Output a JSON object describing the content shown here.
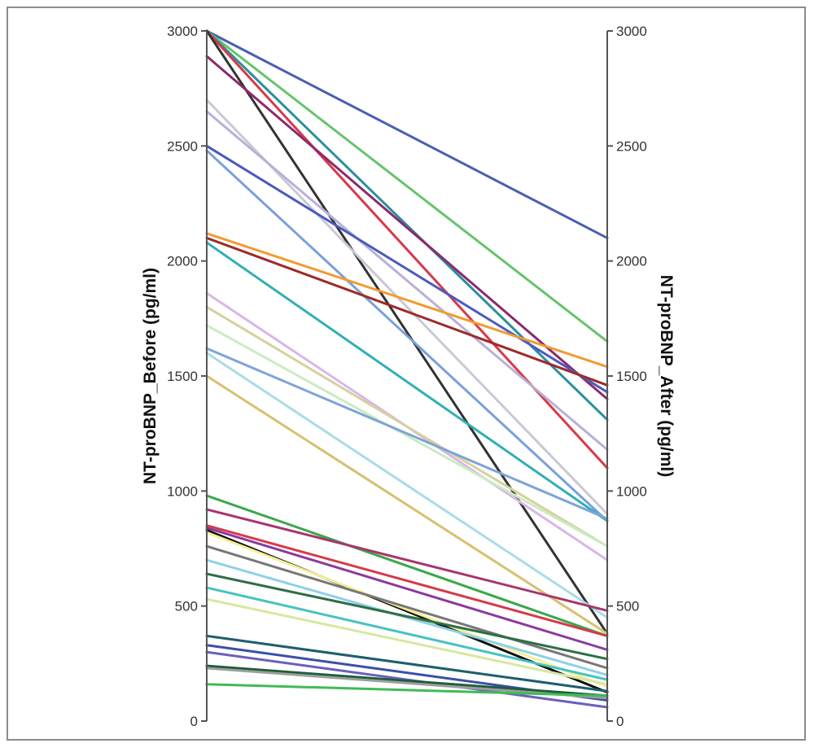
{
  "chart_data": {
    "type": "line",
    "subtype": "parallel-coordinates",
    "xlabel_left": "NT-proBNP_Before (pg/ml)",
    "xlabel_right": "NT-proBNP_After (pg/ml)",
    "ylim": [
      0,
      3000
    ],
    "ticks": [
      0,
      500,
      1000,
      1500,
      2000,
      2500,
      3000
    ],
    "tick_labels": [
      "0",
      "500",
      "1000",
      "1500",
      "2000",
      "2500",
      "3000"
    ],
    "grid": false,
    "legend": "none",
    "series": [
      {
        "before": 3000,
        "after": 2100,
        "color": "#4a5fb0"
      },
      {
        "before": 3000,
        "after": 1650,
        "color": "#66c36b"
      },
      {
        "before": 3000,
        "after": 1310,
        "color": "#2a8fa0"
      },
      {
        "before": 3000,
        "after": 1100,
        "color": "#d63a4a"
      },
      {
        "before": 3000,
        "after": 380,
        "color": "#333333"
      },
      {
        "before": 2890,
        "after": 1400,
        "color": "#8b2a6e"
      },
      {
        "before": 2700,
        "after": 900,
        "color": "#c9c9d6"
      },
      {
        "before": 2650,
        "after": 1180,
        "color": "#b8b0d8"
      },
      {
        "before": 2500,
        "after": 1430,
        "color": "#4a5bbd"
      },
      {
        "before": 2480,
        "after": 870,
        "color": "#7aa0dc"
      },
      {
        "before": 2120,
        "after": 1540,
        "color": "#f29a30"
      },
      {
        "before": 2100,
        "after": 1460,
        "color": "#9e2a2a"
      },
      {
        "before": 2080,
        "after": 870,
        "color": "#2fb0b5"
      },
      {
        "before": 1860,
        "after": 700,
        "color": "#d8b6ea"
      },
      {
        "before": 1800,
        "after": 760,
        "color": "#d6d0a0"
      },
      {
        "before": 1720,
        "after": 760,
        "color": "#c9ecc0"
      },
      {
        "before": 1620,
        "after": 880,
        "color": "#7ea4d8"
      },
      {
        "before": 1600,
        "after": 450,
        "color": "#a8dce8"
      },
      {
        "before": 1500,
        "after": 380,
        "color": "#d8c070"
      },
      {
        "before": 980,
        "after": 370,
        "color": "#3aa84a"
      },
      {
        "before": 920,
        "after": 480,
        "color": "#a8356e"
      },
      {
        "before": 850,
        "after": 370,
        "color": "#d63a4a"
      },
      {
        "before": 840,
        "after": 310,
        "color": "#8a3a9e"
      },
      {
        "before": 830,
        "after": 125,
        "color": "#111111"
      },
      {
        "before": 820,
        "after": 150,
        "color": "#f5ef96"
      },
      {
        "before": 760,
        "after": 230,
        "color": "#777777"
      },
      {
        "before": 700,
        "after": 200,
        "color": "#8ed0e8"
      },
      {
        "before": 640,
        "after": 270,
        "color": "#2e6e46"
      },
      {
        "before": 580,
        "after": 180,
        "color": "#47c3c0"
      },
      {
        "before": 530,
        "after": 160,
        "color": "#d7e89e"
      },
      {
        "before": 370,
        "after": 130,
        "color": "#1e5e6e"
      },
      {
        "before": 330,
        "after": 90,
        "color": "#3a4fa8"
      },
      {
        "before": 300,
        "after": 60,
        "color": "#6a5fbd"
      },
      {
        "before": 240,
        "after": 110,
        "color": "#1d5e3a"
      },
      {
        "before": 230,
        "after": 100,
        "color": "#9e9e9e"
      },
      {
        "before": 160,
        "after": 110,
        "color": "#3fbb56"
      }
    ]
  }
}
